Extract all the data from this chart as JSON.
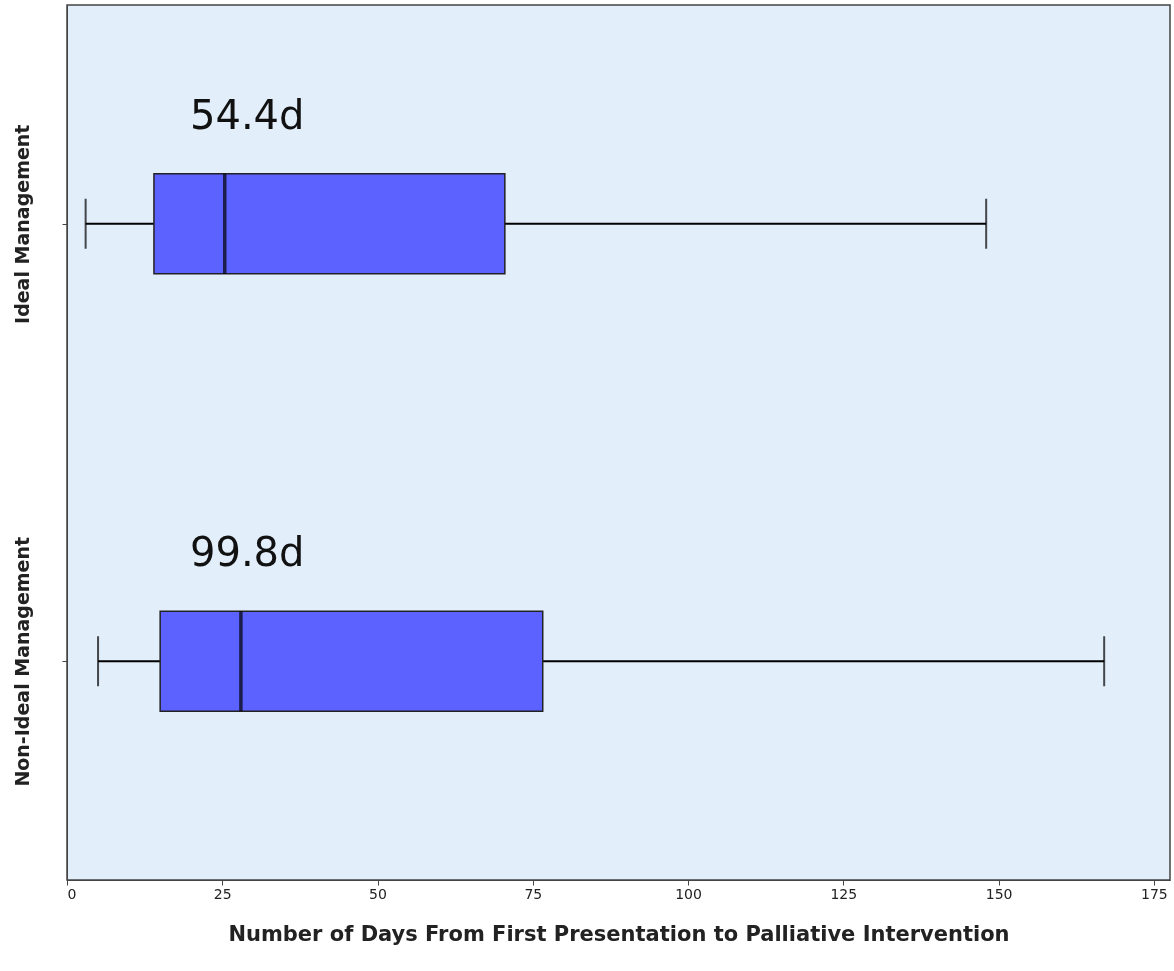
{
  "chart_data": {
    "type": "box",
    "orientation": "horizontal",
    "xlabel": "Number of Days From First Presentation to Palliative Intervention",
    "categories": [
      "Ideal Management",
      "Non-Ideal Management"
    ],
    "boxes": [
      {
        "low": 3,
        "q1": 14,
        "median": 25.4,
        "q3": 70.5,
        "high": 148
      },
      {
        "low": 5,
        "q1": 15,
        "median": 28,
        "q3": 76.6,
        "high": 167
      }
    ],
    "color": "#5c62ff",
    "xlim": [
      0,
      177.6
    ],
    "xticks": [
      0,
      25,
      50,
      75,
      100,
      125,
      150,
      175
    ],
    "annotations": [
      "54.4d",
      "99.8d"
    ],
    "grid": false
  }
}
